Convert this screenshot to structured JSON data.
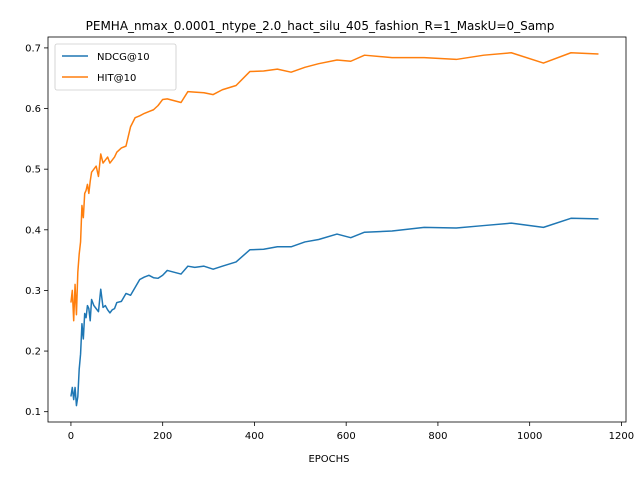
{
  "chart_data": {
    "type": "line",
    "title": "PEMHA_nmax_0.0001_ntype_2.0_hact_silu_405_fashion_R=1_MaskU=0_Samp",
    "xlabel": "EPOCHS",
    "ylabel": "",
    "xlim": [
      -50,
      1210
    ],
    "ylim": [
      0.083,
      0.718
    ],
    "xticks": [
      0,
      200,
      400,
      600,
      800,
      1000,
      1200
    ],
    "yticks": [
      0.1,
      0.2,
      0.3,
      0.4,
      0.5,
      0.6,
      0.7
    ],
    "grid": false,
    "legend_position": "top-left",
    "series": [
      {
        "name": "NDCG@10",
        "color": "#1f77b4",
        "x": [
          0,
          3,
          6,
          9,
          12,
          15,
          18,
          21,
          24,
          27,
          30,
          33,
          36,
          39,
          42,
          45,
          50,
          55,
          60,
          65,
          70,
          75,
          80,
          85,
          90,
          95,
          100,
          110,
          120,
          130,
          140,
          150,
          160,
          170,
          180,
          190,
          200,
          210,
          240,
          255,
          270,
          290,
          310,
          330,
          360,
          390,
          420,
          450,
          480,
          510,
          540,
          580,
          610,
          640,
          700,
          770,
          840,
          900,
          960,
          1030,
          1090,
          1150
        ],
        "y": [
          0.125,
          0.14,
          0.12,
          0.14,
          0.11,
          0.125,
          0.17,
          0.195,
          0.245,
          0.22,
          0.262,
          0.255,
          0.275,
          0.27,
          0.25,
          0.285,
          0.275,
          0.27,
          0.265,
          0.302,
          0.272,
          0.275,
          0.268,
          0.263,
          0.268,
          0.27,
          0.28,
          0.282,
          0.295,
          0.292,
          0.305,
          0.318,
          0.322,
          0.325,
          0.321,
          0.32,
          0.325,
          0.333,
          0.327,
          0.34,
          0.338,
          0.34,
          0.335,
          0.34,
          0.347,
          0.367,
          0.368,
          0.372,
          0.372,
          0.38,
          0.384,
          0.393,
          0.387,
          0.396,
          0.398,
          0.404,
          0.403,
          0.407,
          0.411,
          0.404,
          0.419,
          0.418
        ]
      },
      {
        "name": "HIT@10",
        "color": "#ff7f0e",
        "x": [
          0,
          3,
          6,
          9,
          12,
          15,
          18,
          21,
          24,
          27,
          30,
          33,
          36,
          39,
          42,
          45,
          50,
          55,
          60,
          65,
          70,
          75,
          80,
          85,
          90,
          95,
          100,
          110,
          120,
          130,
          140,
          150,
          160,
          170,
          180,
          190,
          200,
          210,
          240,
          255,
          270,
          290,
          310,
          330,
          360,
          390,
          420,
          450,
          480,
          510,
          540,
          580,
          610,
          640,
          700,
          770,
          840,
          900,
          960,
          1030,
          1090,
          1150
        ],
        "y": [
          0.28,
          0.3,
          0.25,
          0.31,
          0.26,
          0.33,
          0.36,
          0.38,
          0.44,
          0.42,
          0.46,
          0.465,
          0.475,
          0.46,
          0.48,
          0.495,
          0.5,
          0.505,
          0.488,
          0.525,
          0.51,
          0.515,
          0.52,
          0.51,
          0.515,
          0.52,
          0.528,
          0.535,
          0.538,
          0.57,
          0.585,
          0.588,
          0.592,
          0.595,
          0.598,
          0.605,
          0.615,
          0.616,
          0.61,
          0.628,
          0.627,
          0.626,
          0.623,
          0.631,
          0.638,
          0.661,
          0.662,
          0.665,
          0.66,
          0.668,
          0.674,
          0.68,
          0.678,
          0.688,
          0.684,
          0.684,
          0.681,
          0.688,
          0.692,
          0.675,
          0.692,
          0.69
        ]
      }
    ]
  }
}
